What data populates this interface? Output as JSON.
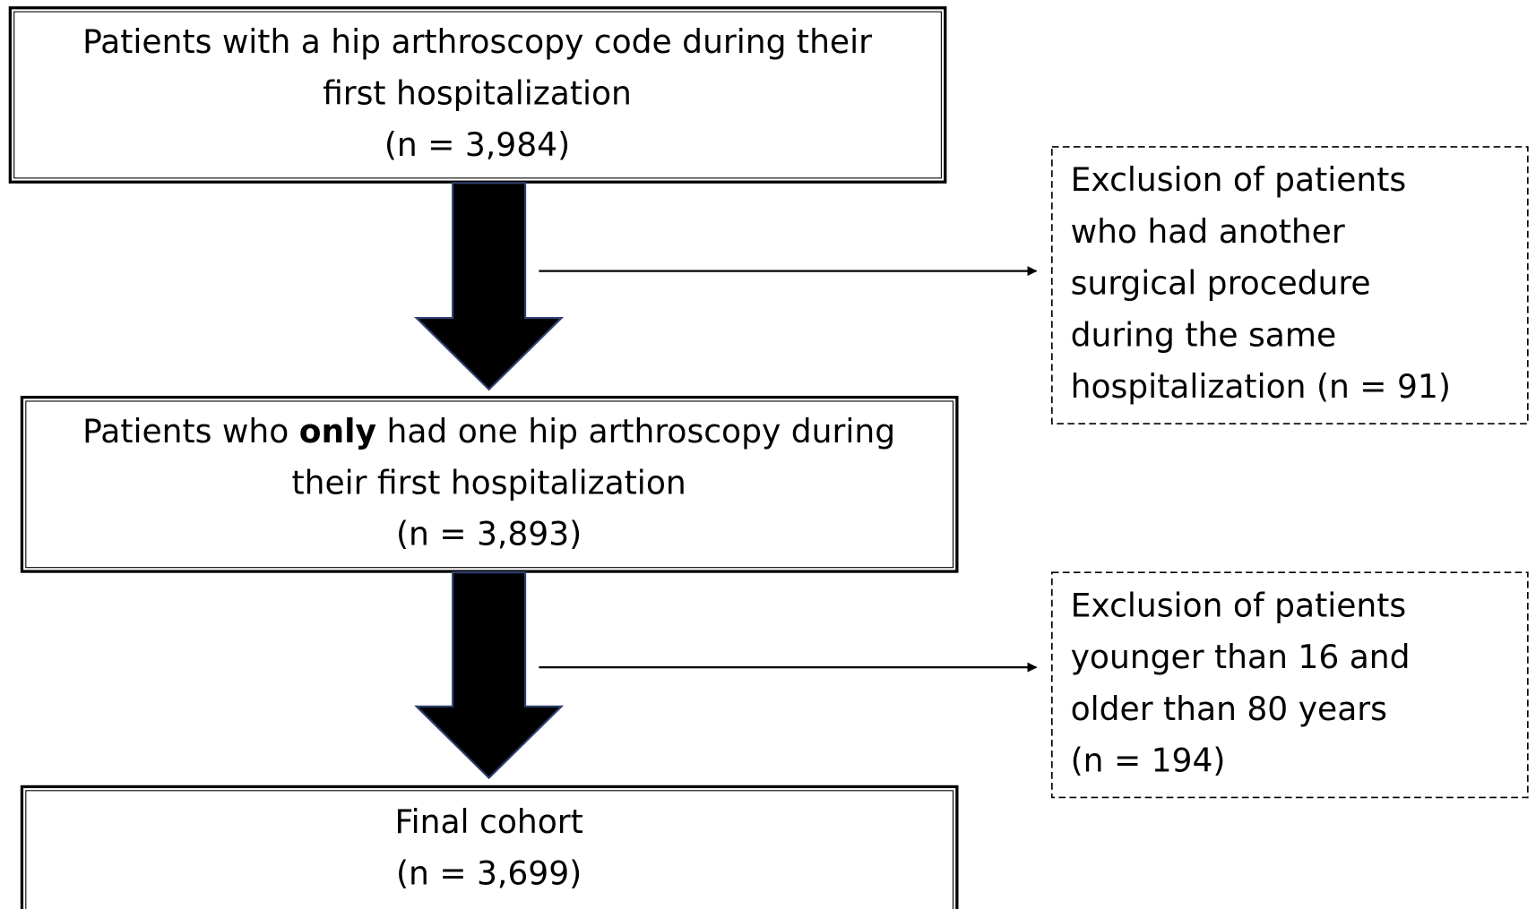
{
  "nodes": [
    {
      "lines": [
        "Patients with a hip arthroscopy code during their",
        "first hospitalization",
        "(n = 3,984)"
      ]
    },
    {
      "lines": [
        [
          "Patients who ",
          "only",
          " had one hip arthroscopy during"
        ],
        "their first hospitalization",
        "(n = 3,893)"
      ]
    },
    {
      "lines": [
        "Final cohort",
        "(n = 3,699)"
      ]
    }
  ],
  "exclusions": [
    {
      "lines": [
        "Exclusion of patients",
        "who had another",
        "surgical procedure",
        "during the same",
        "hospitalization (n = 91)"
      ]
    },
    {
      "lines": [
        "Exclusion of patients",
        "younger than 16 and",
        "older than 80 years",
        "(n = 194)"
      ]
    }
  ]
}
